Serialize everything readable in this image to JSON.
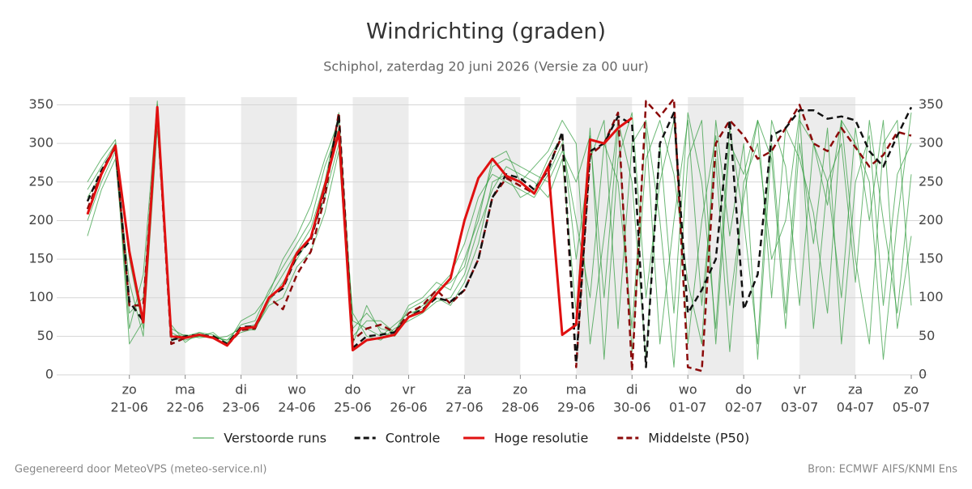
{
  "chart_data": {
    "type": "line",
    "title": "Windrichting (graden)",
    "subtitle": "Schiphol, zaterdag 20 juni 2026 (Versie za 00 uur)",
    "footer_left": "Gegenereerd door MeteoVPS (meteo-service.nl)",
    "footer_right": "Bron: ECMWF AIFS/KNMI Ens",
    "x": [
      "2026-06-20T06:00",
      "2026-06-20T12:00",
      "2026-06-20T18:00",
      "2026-06-21T00:00",
      "2026-06-21T06:00",
      "2026-06-21T12:00",
      "2026-06-21T18:00",
      "2026-06-22T00:00",
      "2026-06-22T06:00",
      "2026-06-22T12:00",
      "2026-06-22T18:00",
      "2026-06-23T00:00",
      "2026-06-23T06:00",
      "2026-06-23T12:00",
      "2026-06-23T18:00",
      "2026-06-24T00:00",
      "2026-06-24T06:00",
      "2026-06-24T12:00",
      "2026-06-24T18:00",
      "2026-06-25T00:00",
      "2026-06-25T06:00",
      "2026-06-25T12:00",
      "2026-06-25T18:00",
      "2026-06-26T00:00",
      "2026-06-26T06:00",
      "2026-06-26T12:00",
      "2026-06-26T18:00",
      "2026-06-27T00:00",
      "2026-06-27T06:00",
      "2026-06-27T12:00",
      "2026-06-27T18:00",
      "2026-06-28T00:00",
      "2026-06-28T06:00",
      "2026-06-28T12:00",
      "2026-06-28T18:00",
      "2026-06-29T00:00",
      "2026-06-29T06:00",
      "2026-06-29T12:00",
      "2026-06-29T18:00",
      "2026-06-30T00:00",
      "2026-06-30T06:00",
      "2026-06-30T12:00",
      "2026-06-30T18:00",
      "2026-07-01T00:00",
      "2026-07-01T06:00",
      "2026-07-01T12:00",
      "2026-07-01T18:00",
      "2026-07-02T00:00",
      "2026-07-02T06:00",
      "2026-07-02T12:00",
      "2026-07-02T18:00",
      "2026-07-03T00:00",
      "2026-07-03T06:00",
      "2026-07-03T12:00",
      "2026-07-03T18:00",
      "2026-07-04T00:00",
      "2026-07-04T06:00",
      "2026-07-04T12:00",
      "2026-07-04T18:00",
      "2026-07-05T00:00"
    ],
    "xlim": [
      "2026-06-20T06:00",
      "2026-07-05T00:00"
    ],
    "xticks": [
      {
        "value": "2026-06-21T00:00",
        "label": [
          "zo",
          "21-06"
        ]
      },
      {
        "value": "2026-06-22T00:00",
        "label": [
          "ma",
          "22-06"
        ]
      },
      {
        "value": "2026-06-23T00:00",
        "label": [
          "di",
          "23-06"
        ]
      },
      {
        "value": "2026-06-24T00:00",
        "label": [
          "wo",
          "24-06"
        ]
      },
      {
        "value": "2026-06-25T00:00",
        "label": [
          "do",
          "25-06"
        ]
      },
      {
        "value": "2026-06-26T00:00",
        "label": [
          "vr",
          "26-06"
        ]
      },
      {
        "value": "2026-06-27T00:00",
        "label": [
          "za",
          "27-06"
        ]
      },
      {
        "value": "2026-06-28T00:00",
        "label": [
          "zo",
          "28-06"
        ]
      },
      {
        "value": "2026-06-29T00:00",
        "label": [
          "ma",
          "29-06"
        ]
      },
      {
        "value": "2026-06-30T00:00",
        "label": [
          "di",
          "30-06"
        ]
      },
      {
        "value": "2026-07-01T00:00",
        "label": [
          "wo",
          "01-07"
        ]
      },
      {
        "value": "2026-07-02T00:00",
        "label": [
          "do",
          "02-07"
        ]
      },
      {
        "value": "2026-07-03T00:00",
        "label": [
          "vr",
          "03-07"
        ]
      },
      {
        "value": "2026-07-04T00:00",
        "label": [
          "za",
          "04-07"
        ]
      },
      {
        "value": "2026-07-05T00:00",
        "label": [
          "zo",
          "05-07"
        ]
      }
    ],
    "ylim": [
      0,
      360
    ],
    "yticks": [
      0,
      50,
      100,
      150,
      200,
      250,
      300,
      350
    ],
    "grid": true,
    "series": [
      {
        "name": "Verstoorde runs",
        "color": "#2e9a3a",
        "members": [
          [
            240,
            270,
            300,
            60,
            130,
            355,
            55,
            45,
            50,
            48,
            45,
            65,
            70,
            110,
            140,
            170,
            200,
            270,
            320,
            60,
            80,
            60,
            55,
            85,
            95,
            110,
            130,
            170,
            230,
            260,
            250,
            240,
            230,
            260,
            300,
            200,
            100,
            300,
            250,
            60,
            320,
            40,
            200,
            330,
            90,
            280,
            30,
            250,
            300,
            150,
            200,
            340,
            60,
            250,
            300,
            120,
            330,
            200,
            80,
            260
          ],
          [
            200,
            250,
            290,
            120,
            50,
            320,
            60,
            50,
            55,
            52,
            42,
            60,
            58,
            95,
            120,
            150,
            180,
            230,
            300,
            80,
            50,
            45,
            60,
            70,
            80,
            95,
            100,
            130,
            190,
            240,
            270,
            260,
            250,
            230,
            280,
            80,
            320,
            20,
            280,
            340,
            100,
            250,
            330,
            40,
            200,
            310,
            90,
            230,
            330,
            280,
            60,
            300,
            170,
            320,
            40,
            250,
            310,
            90,
            260,
            300
          ],
          [
            250,
            280,
            305,
            150,
            60,
            340,
            45,
            48,
            50,
            55,
            40,
            70,
            80,
            105,
            150,
            180,
            220,
            280,
            330,
            50,
            70,
            70,
            55,
            90,
            100,
            120,
            110,
            150,
            200,
            280,
            290,
            250,
            270,
            290,
            330,
            300,
            40,
            180,
            330,
            250,
            20,
            300,
            80,
            340,
            250,
            60,
            320,
            200,
            40,
            330,
            270,
            90,
            300,
            220,
            330,
            150,
            40,
            300,
            330,
            90
          ],
          [
            180,
            240,
            280,
            80,
            100,
            350,
            50,
            52,
            48,
            50,
            45,
            55,
            60,
            90,
            100,
            140,
            160,
            210,
            290,
            40,
            90,
            55,
            50,
            75,
            90,
            100,
            90,
            120,
            170,
            250,
            260,
            230,
            240,
            280,
            310,
            150,
            280,
            330,
            60,
            300,
            330,
            200,
            10,
            280,
            330,
            40,
            300,
            260,
            330,
            100,
            320,
            280,
            210,
            80,
            330,
            300,
            250,
            20,
            200,
            340
          ],
          [
            230,
            260,
            300,
            40,
            70,
            330,
            65,
            42,
            55,
            47,
            50,
            60,
            65,
            100,
            130,
            160,
            190,
            250,
            340,
            70,
            60,
            50,
            65,
            80,
            85,
            110,
            120,
            140,
            210,
            270,
            280,
            270,
            260,
            250,
            290,
            250,
            310,
            100,
            320,
            30,
            280,
            330,
            260,
            120,
            40,
            330,
            180,
            300,
            20,
            300,
            80,
            330,
            300,
            250,
            100,
            320,
            200,
            330,
            60,
            180
          ]
        ]
      },
      {
        "name": "Controle",
        "color": "#111111",
        "dash": true,
        "values": [
          225,
          265,
          295,
          95,
          70,
          345,
          45,
          50,
          52,
          50,
          40,
          62,
          63,
          100,
          112,
          155,
          175,
          240,
          335,
          35,
          50,
          52,
          55,
          75,
          85,
          100,
          95,
          110,
          150,
          230,
          260,
          255,
          240,
          265,
          315,
          15,
          290,
          300,
          335,
          325,
          10,
          300,
          340,
          80,
          110,
          150,
          330,
          85,
          130,
          310,
          320,
          343,
          343,
          332,
          335,
          330,
          290,
          270,
          310,
          347
        ]
      },
      {
        "name": "Hoge resolutie",
        "color": "#e01010",
        "values": [
          208,
          260,
          297,
          160,
          68,
          347,
          50,
          48,
          52,
          48,
          38,
          60,
          62,
          100,
          115,
          158,
          178,
          245,
          315,
          32,
          45,
          48,
          52,
          75,
          82,
          105,
          125,
          200,
          255,
          280,
          258,
          250,
          235,
          270,
          52,
          65,
          305,
          300,
          320,
          333,
          null,
          null,
          null,
          null,
          null,
          null,
          null,
          null,
          null,
          null,
          null,
          null,
          null,
          null,
          null,
          null,
          null,
          null,
          null,
          null
        ]
      },
      {
        "name": "Middelste (P50)",
        "color": "#8b0a0a",
        "dash": true,
        "values": [
          215,
          262,
          295,
          90,
          90,
          340,
          40,
          48,
          52,
          48,
          38,
          58,
          60,
          100,
          85,
          130,
          160,
          230,
          340,
          45,
          60,
          65,
          55,
          80,
          90,
          110,
          92,
          110,
          150,
          230,
          255,
          245,
          235,
          270,
          310,
          10,
          285,
          300,
          340,
          5,
          355,
          335,
          358,
          10,
          5,
          300,
          330,
          310,
          280,
          290,
          320,
          350,
          300,
          290,
          320,
          295,
          270,
          285,
          315,
          310
        ]
      }
    ]
  }
}
